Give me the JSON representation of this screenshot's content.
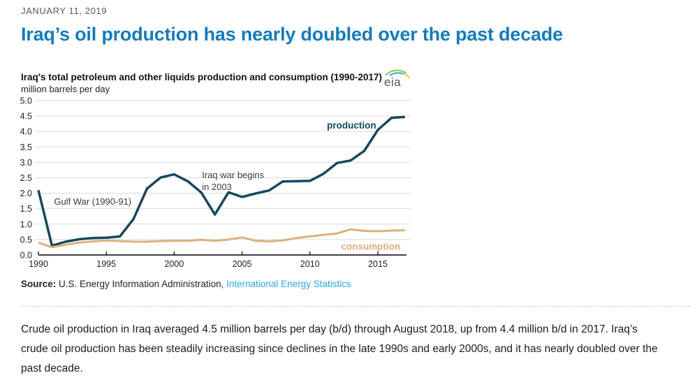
{
  "page": {
    "date": "JANUARY 11, 2019",
    "title": "Iraq’s oil production has nearly doubled over the past decade"
  },
  "chart": {
    "title": "Iraq's total petroleum and other liquids production and consumption (1990-2017)",
    "subtitle": "million barrels per day",
    "logo_text": "eia"
  },
  "chart_data": {
    "type": "line",
    "title": "Iraq's total petroleum and other liquids production and consumption (1990-2017)",
    "xlabel": "",
    "ylabel": "million barrels per day",
    "ylim": [
      0.0,
      5.0
    ],
    "ytick_step": 0.5,
    "grid": true,
    "legend_position": "inline-labels",
    "x": [
      1990,
      1991,
      1992,
      1993,
      1994,
      1995,
      1996,
      1997,
      1998,
      1999,
      2000,
      2001,
      2002,
      2003,
      2004,
      2005,
      2006,
      2007,
      2008,
      2009,
      2010,
      2011,
      2012,
      2013,
      2014,
      2015,
      2016,
      2017
    ],
    "xticks": [
      1990,
      1995,
      2000,
      2005,
      2010,
      2015
    ],
    "series": [
      {
        "name": "production",
        "color": "#17475f",
        "values": [
          2.1,
          0.3,
          0.43,
          0.51,
          0.55,
          0.56,
          0.6,
          1.16,
          2.15,
          2.51,
          2.61,
          2.39,
          2.02,
          1.31,
          2.03,
          1.88,
          1.99,
          2.09,
          2.38,
          2.39,
          2.4,
          2.63,
          2.98,
          3.06,
          3.37,
          4.05,
          4.44,
          4.47
        ]
      },
      {
        "name": "consumption",
        "color": "#ddb07a",
        "values": [
          0.4,
          0.25,
          0.33,
          0.4,
          0.44,
          0.47,
          0.45,
          0.43,
          0.43,
          0.45,
          0.46,
          0.46,
          0.49,
          0.46,
          0.5,
          0.57,
          0.46,
          0.44,
          0.47,
          0.55,
          0.6,
          0.65,
          0.7,
          0.83,
          0.78,
          0.77,
          0.79,
          0.8
        ]
      }
    ],
    "annotations": [
      {
        "text": "Gulf War (1990-91)",
        "year": 1991.15,
        "value": 1.63,
        "bold": false,
        "color": "#3c3c3c",
        "size": 13
      },
      {
        "text": "Iraq war begins",
        "year": 2002.05,
        "value": 2.49,
        "bold": false,
        "color": "#3c3c3c",
        "size": 13
      },
      {
        "text": "in 2003",
        "year": 2002.05,
        "value": 2.1,
        "bold": false,
        "color": "#3c3c3c",
        "size": 13
      },
      {
        "text": "production",
        "year": 2011.25,
        "value": 4.1,
        "bold": true,
        "color": "#17475f",
        "size": 13.5
      },
      {
        "text": "consumption",
        "year": 2012.3,
        "value": 0.17,
        "bold": true,
        "color": "#ddb07a",
        "size": 13.5
      }
    ]
  },
  "source": {
    "label": "Source:",
    "text": " U.S. Energy Information Administration, ",
    "link": "International Energy Statistics"
  },
  "article": {
    "lines": [
      "Crude oil production in Iraq averaged 4.5 million barrels per day (b/d) through August 2018, up from 4.4 million b/d in 2017. Iraq’s",
      "crude oil production has been steadily increasing since declines in the late 1990s and early 2000s, and it has nearly doubled over the",
      "past decade."
    ]
  }
}
